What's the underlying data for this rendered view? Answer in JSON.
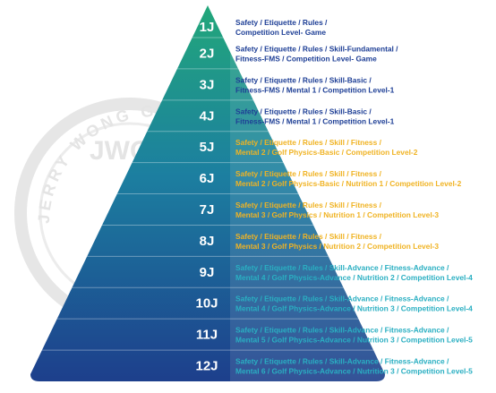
{
  "watermark": {
    "monogram": "J",
    "top_text": "JWGA",
    "ring_text": "JERRY WONG GOLF ACADEMY"
  },
  "colors": {
    "top": "#22a77a",
    "bottom": "#1d3f8c",
    "text_dark": "#1e3f96",
    "text_gold": "#f0b323",
    "text_teal": "#2aafc2"
  },
  "levels": [
    {
      "label": "1J",
      "line1": "Safety / Etiquette / Rules /",
      "line2": "Competition Level- Game",
      "text_color": "#1e3f96"
    },
    {
      "label": "2J",
      "line1": "Safety / Etiquette / Rules / Skill-Fundamental /",
      "line2": "Fitness-FMS / Competition Level- Game",
      "text_color": "#1e3f96"
    },
    {
      "label": "3J",
      "line1": "Safety / Etiquette / Rules / Skill-Basic /",
      "line2": "Fitness-FMS / Mental 1 / Competition Level-1",
      "text_color": "#1e3f96"
    },
    {
      "label": "4J",
      "line1": "Safety / Etiquette / Rules / Skill-Basic /",
      "line2": "Fitness-FMS / Mental 1 / Competition Level-1",
      "text_color": "#1e3f96"
    },
    {
      "label": "5J",
      "line1": "Safety / Etiquette / Rules / Skill / Fitness /",
      "line2": "Mental 2 / Golf Physics-Basic / Competition Level-2",
      "text_color": "#f0b323"
    },
    {
      "label": "6J",
      "line1": "Safety / Etiquette / Rules / Skill / Fitness /",
      "line2": "Mental 2 / Golf Physics-Basic / Nutrition 1 / Competition Level-2",
      "text_color": "#f0b323"
    },
    {
      "label": "7J",
      "line1": "Safety / Etiquette / Rules / Skill / Fitness /",
      "line2": "Mental 3 / Golf Physics / Nutrition 1 / Competition Level-3",
      "text_color": "#f0b323"
    },
    {
      "label": "8J",
      "line1": "Safety / Etiquette / Rules / Skill / Fitness /",
      "line2": "Mental 3 / Golf Physics / Nutrition 2 / Competition Level-3",
      "text_color": "#f0b323"
    },
    {
      "label": "9J",
      "line1": "Safety / Etiquette / Rules / Skill-Advance / Fitness-Advance /",
      "line2": "Mental 4 / Golf Physics-Advance / Nutrition 2 / Competition Level-4",
      "text_color": "#2aafc2"
    },
    {
      "label": "10J",
      "line1": "Safety / Etiquette / Rules / Skill-Advance / Fitness-Advance /",
      "line2": "Mental 4 / Golf Physics-Advance / Nutrition 3 / Competition Level-4",
      "text_color": "#2aafc2"
    },
    {
      "label": "11J",
      "line1": "Safety / Etiquette / Rules / Skill-Advance / Fitness-Advance /",
      "line2": "Mental 5 / Golf Physics-Advance / Nutrition 3 / Competition Level-5",
      "text_color": "#2aafc2"
    },
    {
      "label": "12J",
      "line1": "Safety / Etiquette / Rules / Skill-Advance / Fitness-Advance /",
      "line2": "Mental 6 / Golf Physics-Advance / Nutrition 3 / Competition Level-5",
      "text_color": "#2aafc2"
    }
  ]
}
